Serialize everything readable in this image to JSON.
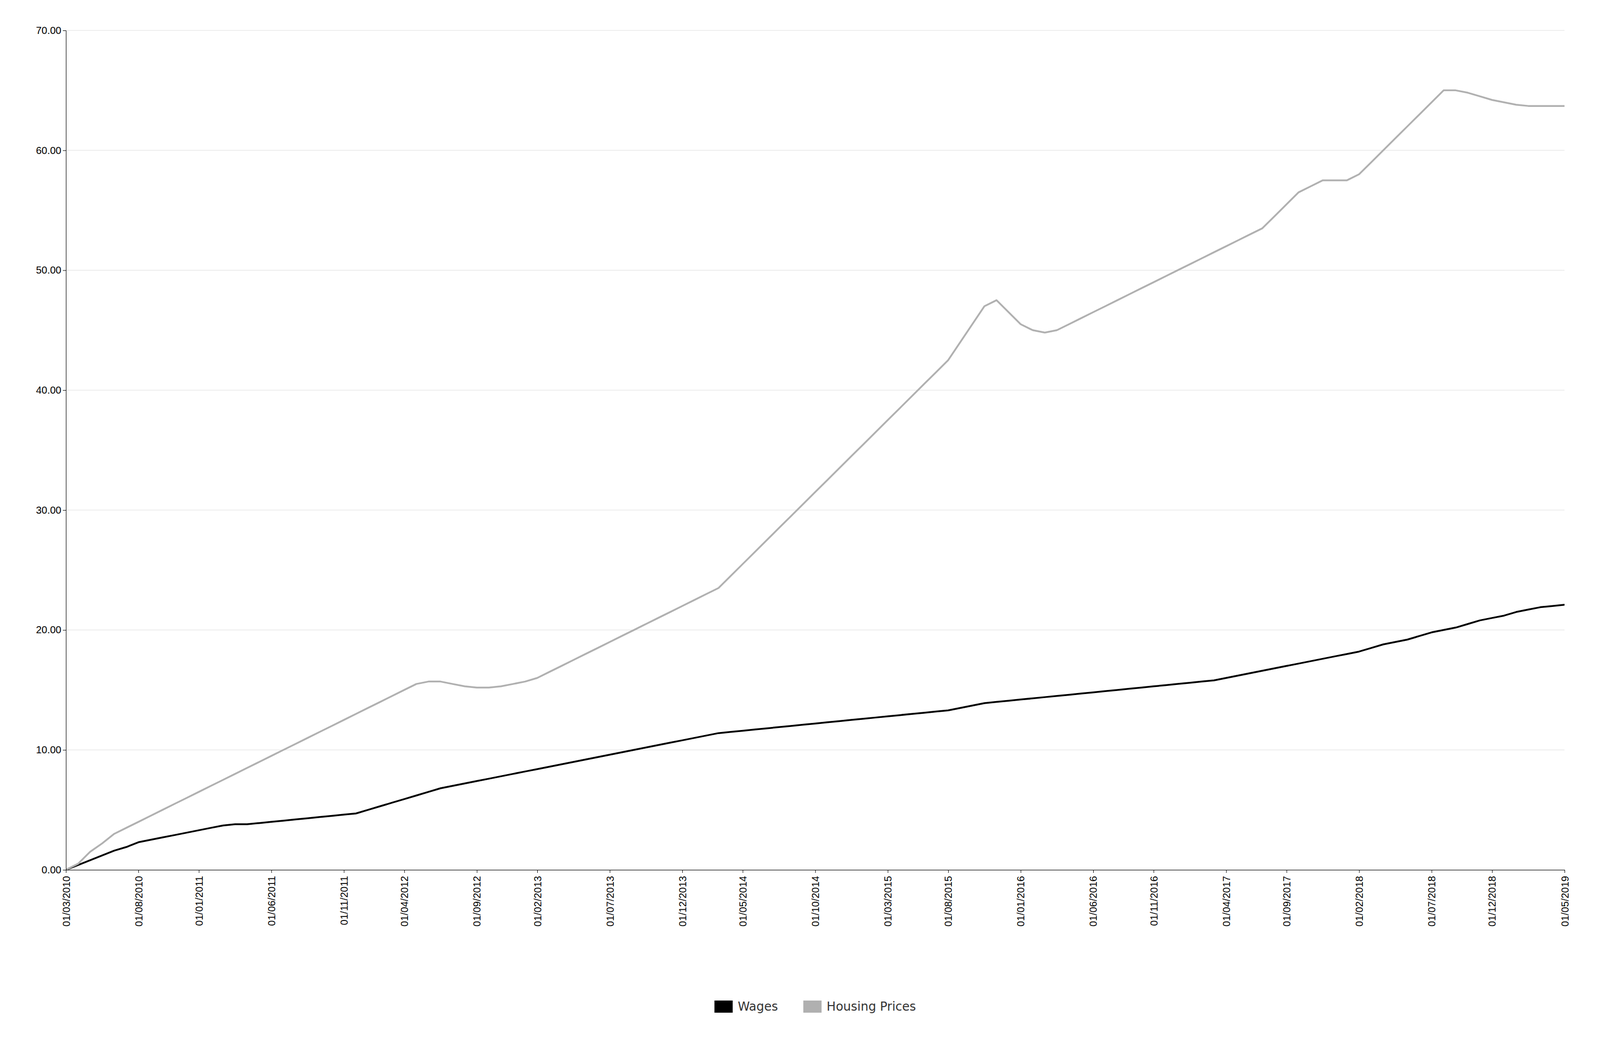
{
  "chart_data": {
    "type": "line",
    "categories": [
      "01/03/2010",
      null,
      null,
      null,
      null,
      null,
      "01/08/2010",
      null,
      null,
      null,
      null,
      "01/01/2011",
      null,
      null,
      null,
      null,
      null,
      "01/06/2011",
      null,
      null,
      null,
      null,
      null,
      "01/11/2011",
      null,
      null,
      null,
      null,
      "01/04/2012",
      null,
      null,
      null,
      null,
      null,
      "01/09/2012",
      null,
      null,
      null,
      null,
      "01/02/2013",
      null,
      null,
      null,
      null,
      null,
      "01/07/2013",
      null,
      null,
      null,
      null,
      null,
      "01/12/2013",
      null,
      null,
      null,
      null,
      "01/05/2014",
      null,
      null,
      null,
      null,
      null,
      "01/10/2014",
      null,
      null,
      null,
      null,
      null,
      "01/03/2015",
      null,
      null,
      null,
      null,
      "01/08/2015",
      null,
      null,
      null,
      null,
      null,
      "01/01/2016",
      null,
      null,
      null,
      null,
      null,
      "01/06/2016",
      null,
      null,
      null,
      null,
      "01/11/2016",
      null,
      null,
      null,
      null,
      null,
      "01/04/2017",
      null,
      null,
      null,
      null,
      "01/09/2017",
      null,
      null,
      null,
      null,
      null,
      "01/02/2018",
      null,
      null,
      null,
      null,
      null,
      "01/07/2018",
      null,
      null,
      null,
      null,
      "01/12/2018",
      null,
      null,
      null,
      null,
      null,
      "01/05/2019"
    ],
    "series": [
      {
        "name": "Wages",
        "color": "#000000",
        "values": [
          0.0,
          0.4,
          0.8,
          1.2,
          1.6,
          1.9,
          2.3,
          2.5,
          2.7,
          2.9,
          3.1,
          3.3,
          3.5,
          3.7,
          3.8,
          3.8,
          3.9,
          4.0,
          4.1,
          4.2,
          4.3,
          4.4,
          4.5,
          4.6,
          4.7,
          5.0,
          5.3,
          5.6,
          5.9,
          6.2,
          6.5,
          6.8,
          7.0,
          7.2,
          7.4,
          7.6,
          7.8,
          8.0,
          8.2,
          8.4,
          8.6,
          8.8,
          9.0,
          9.2,
          9.4,
          9.6,
          9.8,
          10.0,
          10.2,
          10.4,
          10.6,
          10.8,
          11.0,
          11.2,
          11.4,
          11.5,
          11.6,
          11.7,
          11.8,
          11.9,
          12.0,
          12.1,
          12.2,
          12.3,
          12.4,
          12.5,
          12.6,
          12.7,
          12.8,
          12.9,
          13.0,
          13.1,
          13.2,
          13.3,
          13.5,
          13.7,
          13.9,
          14.0,
          14.1,
          14.2,
          14.3,
          14.4,
          14.5,
          14.6,
          14.7,
          14.8,
          14.9,
          15.0,
          15.1,
          15.2,
          15.3,
          15.4,
          15.5,
          15.6,
          15.7,
          15.8,
          16.0,
          16.2,
          16.4,
          16.6,
          16.8,
          17.0,
          17.2,
          17.4,
          17.6,
          17.8,
          18.0,
          18.2,
          18.5,
          18.8,
          19.0,
          19.2,
          19.5,
          19.8,
          20.0,
          20.2,
          20.5,
          20.8,
          21.0,
          21.2,
          21.5,
          21.7,
          21.9,
          22.0,
          22.1
        ]
      },
      {
        "name": "Housing Prices",
        "color": "#b0b0b0",
        "values": [
          0.0,
          0.5,
          1.5,
          2.2,
          3.0,
          3.5,
          4.0,
          4.5,
          5.0,
          5.5,
          6.0,
          6.5,
          7.0,
          7.5,
          8.0,
          8.5,
          9.0,
          9.5,
          10.0,
          10.5,
          11.0,
          11.5,
          12.0,
          12.5,
          13.0,
          13.5,
          14.0,
          14.5,
          15.0,
          15.5,
          15.7,
          15.7,
          15.5,
          15.3,
          15.2,
          15.2,
          15.3,
          15.5,
          15.7,
          16.0,
          16.5,
          17.0,
          17.5,
          18.0,
          18.5,
          19.0,
          19.5,
          20.0,
          20.5,
          21.0,
          21.5,
          22.0,
          22.5,
          23.0,
          23.5,
          24.5,
          25.5,
          26.5,
          27.5,
          28.5,
          29.5,
          30.5,
          31.5,
          32.5,
          33.5,
          34.5,
          35.5,
          36.5,
          37.5,
          38.5,
          39.5,
          40.5,
          41.5,
          42.5,
          44.0,
          45.5,
          47.0,
          47.5,
          46.5,
          45.5,
          45.0,
          44.8,
          45.0,
          45.5,
          46.0,
          46.5,
          47.0,
          47.5,
          48.0,
          48.5,
          49.0,
          49.5,
          50.0,
          50.5,
          51.0,
          51.5,
          52.0,
          52.5,
          53.0,
          53.5,
          54.5,
          55.5,
          56.5,
          57.0,
          57.5,
          57.5,
          57.5,
          58.0,
          59.0,
          60.0,
          61.0,
          62.0,
          63.0,
          64.0,
          65.0,
          65.0,
          64.8,
          64.5,
          64.2,
          64.0,
          63.8,
          63.7,
          63.7,
          63.7,
          63.7
        ]
      }
    ],
    "ylim": [
      0.0,
      70.0
    ],
    "yticks": [
      {
        "value": 0.0,
        "label": "0.00"
      },
      {
        "value": 10.0,
        "label": "10.00"
      },
      {
        "value": 20.0,
        "label": "20.00"
      },
      {
        "value": 30.0,
        "label": "30.00"
      },
      {
        "value": 40.0,
        "label": "40.00"
      },
      {
        "value": 50.0,
        "label": "50.00"
      },
      {
        "value": 60.0,
        "label": "60.00"
      },
      {
        "value": 70.0,
        "label": "70.00"
      }
    ],
    "grid": true,
    "legend": "bottom"
  }
}
